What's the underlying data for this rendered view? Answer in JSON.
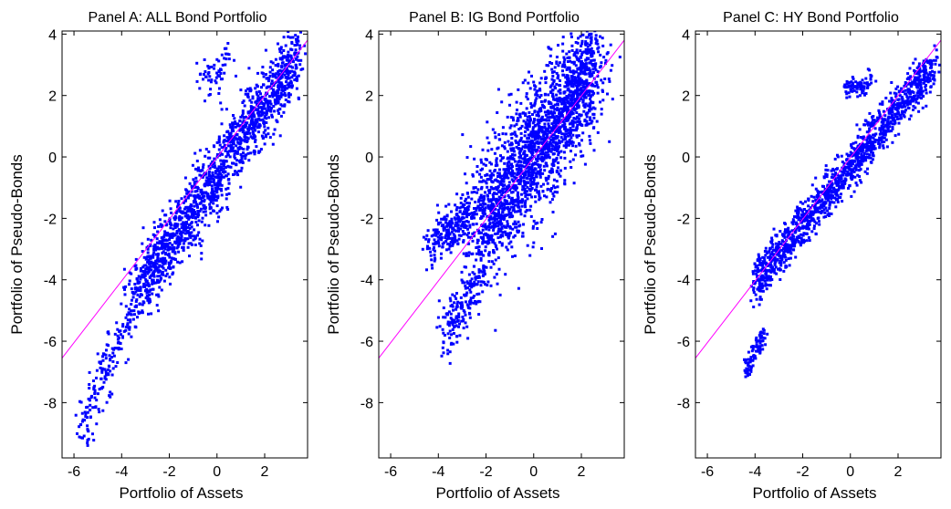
{
  "chart_data": [
    {
      "type": "scatter",
      "title": "Panel A: ALL Bond Portfolio",
      "xlabel": "Portfolio of Assets",
      "ylabel": "Portfolio of Pseudo-Bonds",
      "xlim": [
        -6.5,
        3.8
      ],
      "ylim": [
        -9.8,
        4.1
      ],
      "xticks": [
        "-6",
        "-4",
        "-2",
        "0",
        "2"
      ],
      "yticks": [
        "4",
        "2",
        "0",
        "-2",
        "-4",
        "-6",
        "-8"
      ],
      "point_color": "#0000ff",
      "line_color": "#ff00ff",
      "reference_line": {
        "x": [
          -6.5,
          3.8
        ],
        "y": [
          -6.55,
          3.8
        ]
      },
      "clusters": [
        {
          "x": [
            -3.2,
            3.4
          ],
          "y": [
            -4.2,
            3.3
          ],
          "spread": 0.55,
          "n": 1500
        },
        {
          "x": [
            -5.7,
            -3.0
          ],
          "y": [
            -9.0,
            -4.0
          ],
          "spread": 0.45,
          "n": 220
        },
        {
          "x": [
            -0.6,
            0.6
          ],
          "y": [
            2.4,
            3.2
          ],
          "spread": 0.3,
          "n": 60
        }
      ]
    },
    {
      "type": "scatter",
      "title": "Panel B: IG Bond Portfolio",
      "xlabel": "Portfolio of Assets",
      "ylabel": "Portfolio of Pseudo-Bonds",
      "xlim": [
        -6.5,
        3.8
      ],
      "ylim": [
        -9.8,
        4.1
      ],
      "xticks": [
        "-6",
        "-4",
        "-2",
        "0",
        "2"
      ],
      "yticks": [
        "4",
        "2",
        "0",
        "-2",
        "-4",
        "-6",
        "-8"
      ],
      "point_color": "#0000ff",
      "line_color": "#ff00ff",
      "reference_line": {
        "x": [
          -6.5,
          3.8
        ],
        "y": [
          -6.55,
          3.8
        ]
      },
      "clusters": [
        {
          "x": [
            -2.4,
            2.4
          ],
          "y": [
            -2.5,
            2.8
          ],
          "spread": 1.0,
          "n": 2000
        },
        {
          "x": [
            -4.4,
            -2.6
          ],
          "y": [
            -2.9,
            -1.7
          ],
          "spread": 0.35,
          "n": 220
        },
        {
          "x": [
            -3.8,
            -2.2
          ],
          "y": [
            -6.0,
            -3.8
          ],
          "spread": 0.4,
          "n": 180
        },
        {
          "x": [
            1.2,
            2.6
          ],
          "y": [
            1.0,
            3.9
          ],
          "spread": 0.3,
          "n": 160
        }
      ]
    },
    {
      "type": "scatter",
      "title": "Panel C: HY Bond Portfolio",
      "xlabel": "Portfolio of Assets",
      "ylabel": "Portfolio of Pseudo-Bonds",
      "xlim": [
        -6.5,
        3.8
      ],
      "ylim": [
        -9.8,
        4.1
      ],
      "xticks": [
        "-6",
        "-4",
        "-2",
        "0",
        "2"
      ],
      "yticks": [
        "4",
        "2",
        "0",
        "-2",
        "-4",
        "-6",
        "-8"
      ],
      "point_color": "#0000ff",
      "line_color": "#ff00ff",
      "reference_line": {
        "x": [
          -6.5,
          3.8
        ],
        "y": [
          -6.55,
          3.8
        ]
      },
      "clusters": [
        {
          "x": [
            -4.0,
            3.5
          ],
          "y": [
            -4.1,
            3.0
          ],
          "spread": 0.35,
          "n": 1400
        },
        {
          "x": [
            -0.2,
            0.9
          ],
          "y": [
            2.2,
            2.4
          ],
          "spread": 0.18,
          "n": 80
        },
        {
          "x": [
            -4.4,
            -3.6
          ],
          "y": [
            -7.0,
            -5.8
          ],
          "spread": 0.18,
          "n": 90
        }
      ]
    }
  ]
}
